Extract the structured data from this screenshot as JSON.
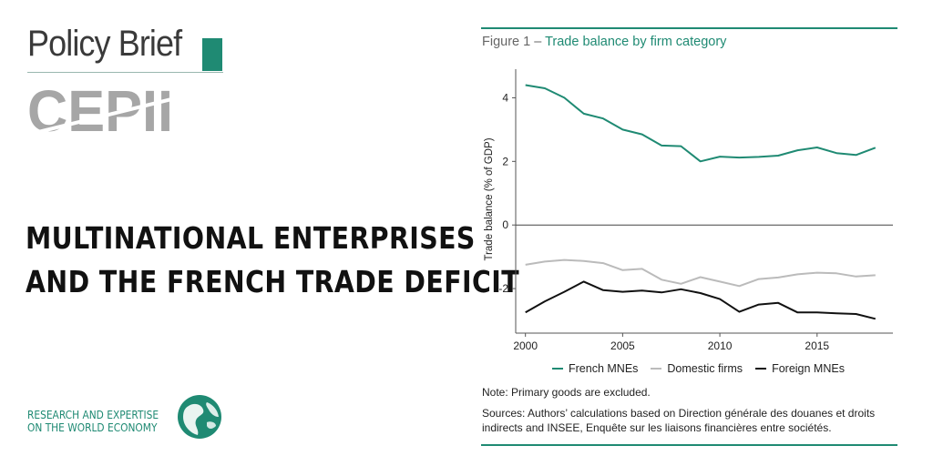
{
  "branding": {
    "title": "Policy Brief",
    "logo_text": "CEPII",
    "tagline_line1": "RESEARCH AND EXPERTISE",
    "tagline_line2": "ON THE WORLD ECONOMY",
    "accent_color": "#1f8a73"
  },
  "headline": {
    "line1": "MULTINATIONAL ENTERPRISES",
    "line2": "AND THE FRENCH TRADE DEFICIT"
  },
  "figure": {
    "label": "Figure 1 –",
    "title": "Trade balance by firm category",
    "note": "Note: Primary goods are excluded.",
    "sources": "Sources: Authors’ calculations based on Direction générale des douanes et droits indirects and INSEE, Enquête sur les liaisons financières entre sociétés."
  },
  "chart_data": {
    "type": "line",
    "title": "Trade balance by firm category",
    "xlabel": "",
    "ylabel": "Trade balance (% of GDP)",
    "xlim": [
      1999.5,
      2018.9
    ],
    "ylim": [
      -3.4,
      4.9
    ],
    "x_ticks": [
      2000,
      2005,
      2010,
      2015
    ],
    "y_ticks": [
      4,
      2,
      0,
      -2
    ],
    "zero_line": true,
    "legend_position": "bottom",
    "x": [
      2000,
      2001,
      2002,
      2003,
      2004,
      2005,
      2006,
      2007,
      2008,
      2009,
      2010,
      2011,
      2012,
      2013,
      2014,
      2015,
      2016,
      2017,
      2018
    ],
    "series": [
      {
        "name": "French MNEs",
        "color": "#1f8a73",
        "values": [
          4.4,
          4.3,
          4.0,
          3.5,
          3.35,
          3.0,
          2.85,
          2.5,
          2.48,
          2.0,
          2.15,
          2.12,
          2.14,
          2.18,
          2.35,
          2.44,
          2.26,
          2.2,
          2.43
        ]
      },
      {
        "name": "Domestic firms",
        "color": "#bbbbbb",
        "values": [
          -1.25,
          -1.15,
          -1.1,
          -1.13,
          -1.2,
          -1.42,
          -1.38,
          -1.72,
          -1.85,
          -1.64,
          -1.78,
          -1.92,
          -1.7,
          -1.65,
          -1.55,
          -1.5,
          -1.52,
          -1.62,
          -1.58
        ]
      },
      {
        "name": "Foreign MNEs",
        "color": "#111111",
        "values": [
          -2.75,
          -2.4,
          -2.1,
          -1.78,
          -2.05,
          -2.1,
          -2.06,
          -2.12,
          -2.02,
          -2.14,
          -2.33,
          -2.73,
          -2.5,
          -2.45,
          -2.75,
          -2.75,
          -2.78,
          -2.8,
          -2.95
        ]
      }
    ]
  }
}
